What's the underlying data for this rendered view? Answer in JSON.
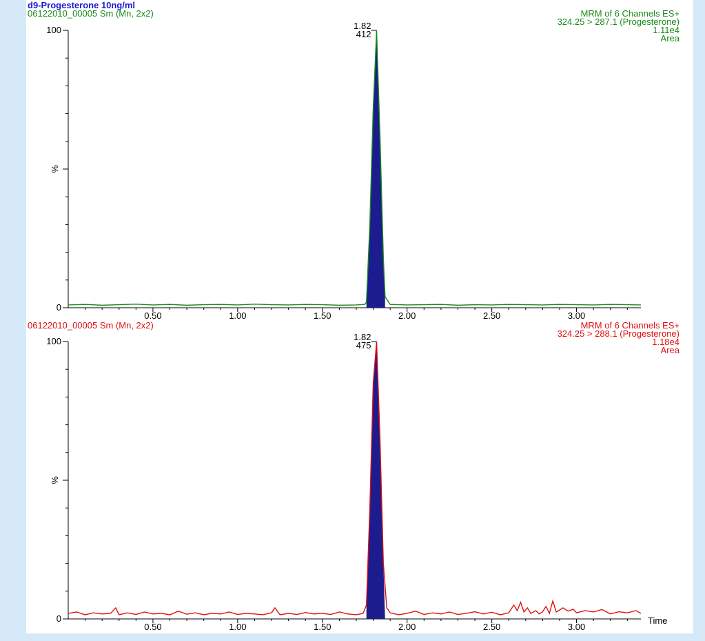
{
  "figure_title": "d9-Progesterone 10ng/ml",
  "colors": {
    "background": "#d6e9f9",
    "panel": "#ffffff",
    "title": "#1a1ad2",
    "peak_fill": "#1c1c8e",
    "axis": "#000000"
  },
  "chart_data": [
    {
      "type": "line",
      "trace_color": "#1a8a1a",
      "sample_label": "06122010_00005 Sm (Mn, 2x2)",
      "header_right": [
        "MRM of 6 Channels ES+",
        "324.25 > 287.1 (Progesterone)",
        "1.11e4",
        "Area"
      ],
      "xlim": [
        0.0,
        3.38
      ],
      "ylim": [
        0,
        100
      ],
      "x_ticks": [
        "0.50",
        "1.00",
        "1.50",
        "2.00",
        "2.50",
        "3.00"
      ],
      "y_ticks": [
        "0",
        "100"
      ],
      "ylabel": "%",
      "xlabel": "",
      "peak": {
        "rt": 1.82,
        "rt_label": "1.82",
        "area_label": "412",
        "start": 1.76,
        "end": 1.87,
        "height": 100
      },
      "series": [
        {
          "x": [
            0.0,
            0.1,
            0.2,
            0.3,
            0.4,
            0.5,
            0.6,
            0.7,
            0.8,
            0.9,
            1.0,
            1.1,
            1.2,
            1.3,
            1.4,
            1.5,
            1.6,
            1.7,
            1.75,
            1.76,
            1.78,
            1.8,
            1.82,
            1.84,
            1.86,
            1.87,
            1.9,
            2.0,
            2.1,
            2.2,
            2.3,
            2.4,
            2.5,
            2.6,
            2.7,
            2.8,
            2.9,
            3.0,
            3.1,
            3.2,
            3.3,
            3.38
          ],
          "y": [
            1.0,
            1.2,
            0.9,
            1.1,
            1.3,
            1.0,
            1.2,
            0.9,
            1.1,
            1.2,
            1.0,
            1.3,
            1.1,
            1.0,
            1.2,
            1.1,
            0.9,
            1.0,
            1.2,
            2.0,
            30,
            72,
            100,
            62,
            18,
            4,
            1.2,
            1.0,
            1.1,
            1.2,
            0.9,
            1.1,
            1.0,
            1.2,
            1.1,
            1.0,
            1.2,
            1.1,
            1.0,
            1.2,
            1.1,
            1.0
          ]
        }
      ]
    },
    {
      "type": "line",
      "trace_color": "#e01010",
      "sample_label": "06122010_00005 Sm (Mn, 2x2)",
      "header_right": [
        "MRM of 6 Channels ES+",
        "324.25 > 288.1 (Progesterone)",
        "1.18e4",
        "Area"
      ],
      "xlim": [
        0.0,
        3.38
      ],
      "ylim": [
        0,
        100
      ],
      "x_ticks": [
        "0.50",
        "1.00",
        "1.50",
        "2.00",
        "2.50",
        "3.00"
      ],
      "y_ticks": [
        "0",
        "100"
      ],
      "ylabel": "%",
      "xlabel": "Time",
      "peak": {
        "rt": 1.82,
        "rt_label": "1.82",
        "area_label": "475",
        "start": 1.76,
        "end": 1.87,
        "height": 100
      },
      "series": [
        {
          "x": [
            0.0,
            0.05,
            0.1,
            0.15,
            0.2,
            0.25,
            0.28,
            0.3,
            0.35,
            0.4,
            0.45,
            0.5,
            0.55,
            0.6,
            0.65,
            0.7,
            0.75,
            0.8,
            0.85,
            0.9,
            0.95,
            1.0,
            1.05,
            1.1,
            1.15,
            1.2,
            1.22,
            1.25,
            1.3,
            1.35,
            1.4,
            1.45,
            1.5,
            1.55,
            1.6,
            1.65,
            1.7,
            1.74,
            1.76,
            1.78,
            1.8,
            1.82,
            1.84,
            1.86,
            1.88,
            1.9,
            1.95,
            2.0,
            2.05,
            2.1,
            2.15,
            2.2,
            2.25,
            2.3,
            2.35,
            2.4,
            2.45,
            2.5,
            2.55,
            2.6,
            2.63,
            2.65,
            2.67,
            2.69,
            2.71,
            2.73,
            2.76,
            2.78,
            2.8,
            2.82,
            2.84,
            2.86,
            2.88,
            2.9,
            2.92,
            2.95,
            2.98,
            3.0,
            3.05,
            3.1,
            3.15,
            3.2,
            3.25,
            3.3,
            3.35,
            3.38
          ],
          "y": [
            2.0,
            2.5,
            1.5,
            2.2,
            1.8,
            2.0,
            4.0,
            1.5,
            2.2,
            1.6,
            2.5,
            1.8,
            2.0,
            1.5,
            2.8,
            1.7,
            2.2,
            1.5,
            2.0,
            1.8,
            2.5,
            1.6,
            2.0,
            1.8,
            1.5,
            2.2,
            4.0,
            1.5,
            2.0,
            1.6,
            2.3,
            1.8,
            2.0,
            1.6,
            2.5,
            1.8,
            1.5,
            2.0,
            5,
            40,
            85,
            100,
            65,
            20,
            4,
            2.2,
            1.5,
            2.0,
            2.8,
            1.6,
            2.2,
            1.8,
            2.5,
            1.6,
            2.0,
            2.6,
            1.8,
            2.4,
            1.5,
            2.2,
            5.0,
            3.0,
            6.0,
            2.5,
            4.0,
            2.0,
            3.0,
            1.8,
            2.6,
            4.5,
            2.0,
            6.5,
            2.5,
            3.2,
            4.0,
            2.8,
            3.5,
            2.2,
            3.0,
            2.5,
            3.4,
            1.8,
            2.6,
            2.2,
            3.0,
            2.0
          ]
        }
      ]
    }
  ]
}
